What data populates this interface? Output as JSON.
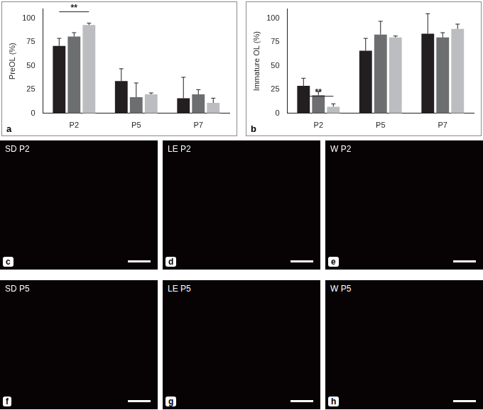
{
  "chart_data": [
    {
      "type": "bar",
      "panel": "a",
      "y_label": "PreOL (%)",
      "categories": [
        "P2",
        "P5",
        "P7"
      ],
      "ylim": [
        0,
        110
      ],
      "yticks": [
        0,
        25,
        50,
        75,
        100
      ],
      "grid": false,
      "series": [
        {
          "color": "#231f20",
          "values": [
            71,
            34,
            16
          ],
          "errors": [
            8,
            13,
            22
          ]
        },
        {
          "color": "#6d6e70",
          "values": [
            81,
            17,
            20
          ],
          "errors": [
            4,
            15,
            5
          ]
        },
        {
          "color": "#bcbdc0",
          "values": [
            93,
            20,
            11
          ],
          "errors": [
            2,
            1.5,
            5
          ]
        }
      ],
      "annotations": [
        {
          "text": "**",
          "category": "P2",
          "between": [
            0,
            2
          ],
          "y": 107
        }
      ]
    },
    {
      "type": "bar",
      "panel": "b",
      "y_label": "Immature OL (%)",
      "categories": [
        "P2",
        "P5",
        "P7"
      ],
      "ylim": [
        0,
        110
      ],
      "yticks": [
        0,
        25,
        50,
        75,
        100
      ],
      "grid": false,
      "series": [
        {
          "color": "#231f20",
          "values": [
            29,
            66,
            84
          ],
          "errors": [
            8,
            13,
            21
          ]
        },
        {
          "color": "#6d6e70",
          "values": [
            19,
            83,
            80
          ],
          "errors": [
            4,
            14,
            5
          ]
        },
        {
          "color": "#bcbdc0",
          "values": [
            7,
            80,
            89
          ],
          "errors": [
            3,
            1.5,
            5
          ]
        }
      ],
      "annotations": [
        {
          "text": "**",
          "category": "P2",
          "between": [
            0,
            2
          ],
          "y": 18
        }
      ]
    }
  ],
  "micrographs": [
    {
      "panel": "c",
      "label": "SD P2"
    },
    {
      "panel": "d",
      "label": "LE P2"
    },
    {
      "panel": "e",
      "label": "W P2"
    },
    {
      "panel": "f",
      "label": "SD P5"
    },
    {
      "panel": "g",
      "label": "LE P5"
    },
    {
      "panel": "h",
      "label": "W P5"
    }
  ]
}
